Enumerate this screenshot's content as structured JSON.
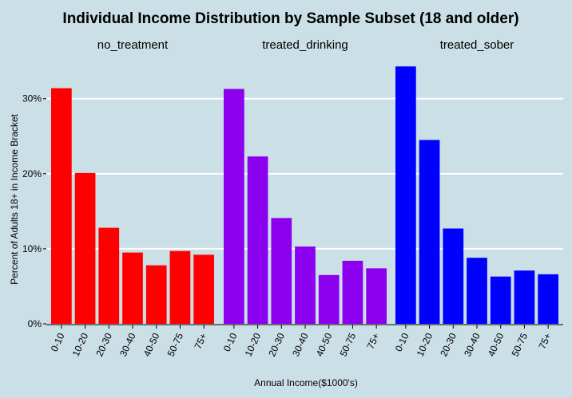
{
  "chart_data": {
    "type": "bar",
    "title": "Individual Income Distribution by Sample Subset (18 and older)",
    "xlabel": "Annual Income($1000's)",
    "ylabel": "Percent of Adults 18+ in Income Bracket",
    "categories": [
      "0-10",
      "10-20",
      "20-30",
      "30-40",
      "40-50",
      "50-75",
      "75+"
    ],
    "ylim": [
      0,
      35.5
    ],
    "yticks": [
      0,
      10,
      20,
      30
    ],
    "ytick_labels": [
      "0%",
      "10%",
      "20%",
      "30%"
    ],
    "grid": true,
    "facets": [
      {
        "name": "no_treatment",
        "color": "#ff0000",
        "values": [
          31.4,
          20.1,
          12.8,
          9.5,
          7.8,
          9.7,
          9.2
        ]
      },
      {
        "name": "treated_drinking",
        "color": "#8b00ee",
        "values": [
          31.3,
          22.3,
          14.1,
          10.3,
          6.5,
          8.4,
          7.4
        ]
      },
      {
        "name": "treated_sober",
        "color": "#0000ff",
        "values": [
          34.3,
          24.5,
          12.7,
          8.8,
          6.3,
          7.1,
          6.6
        ]
      }
    ]
  }
}
